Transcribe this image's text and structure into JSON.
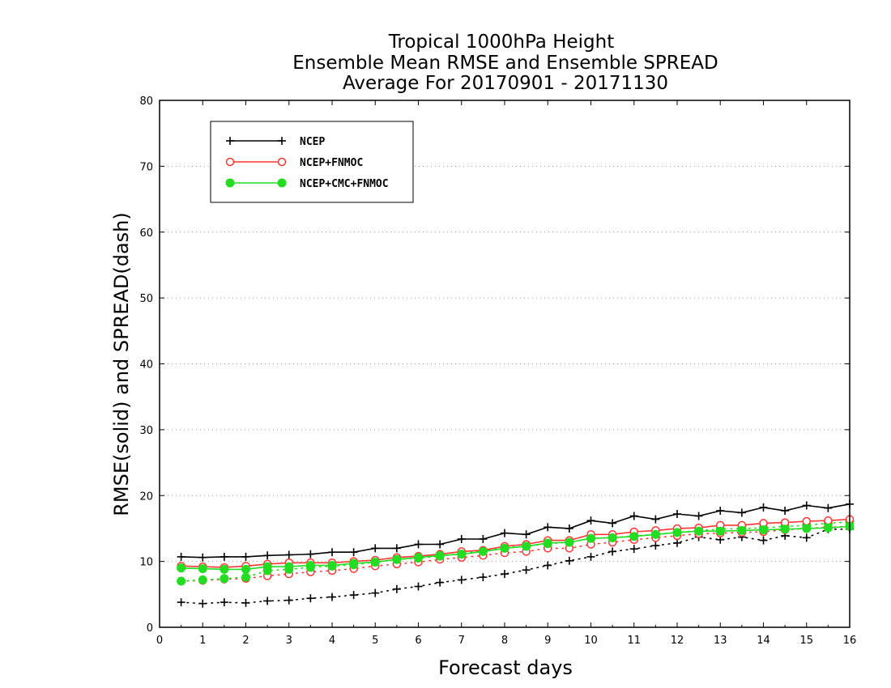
{
  "chart_data": {
    "type": "line",
    "title_lines": [
      "Tropical 1000hPa Height",
      "Ensemble Mean RMSE and Ensemble SPREAD",
      "Average For 20170901 - 20171130"
    ],
    "xlabel": "Forecast days",
    "ylabel": "RMSE(solid) and SPREAD(dash)",
    "xlim": [
      0,
      16
    ],
    "ylim": [
      0,
      80
    ],
    "xticks": [
      "0",
      "1",
      "2",
      "3",
      "4",
      "5",
      "6",
      "7",
      "8",
      "9",
      "10",
      "11",
      "12",
      "13",
      "14",
      "15",
      "16"
    ],
    "yticks": [
      "0",
      "10",
      "20",
      "30",
      "40",
      "50",
      "60",
      "70",
      "80"
    ],
    "grid": "horizontal dotted",
    "legend_position": "top-left",
    "x": [
      0.5,
      1,
      1.5,
      2,
      2.5,
      3,
      3.5,
      4,
      4.5,
      5,
      5.5,
      6,
      6.5,
      7,
      7.5,
      8,
      8.5,
      9,
      9.5,
      10,
      10.5,
      11,
      11.5,
      12,
      12.5,
      13,
      13.5,
      14,
      14.5,
      15,
      15.5,
      16
    ],
    "series": [
      {
        "name": "NCEP",
        "color": "#000000",
        "marker": "plus",
        "rmse": [
          10.7,
          10.6,
          10.7,
          10.7,
          10.9,
          11.0,
          11.1,
          11.4,
          11.4,
          12.0,
          12.0,
          12.6,
          12.6,
          13.4,
          13.4,
          14.3,
          14.1,
          15.2,
          15.0,
          16.2,
          15.8,
          16.9,
          16.4,
          17.2,
          16.9,
          17.7,
          17.4,
          18.2,
          17.7,
          18.5,
          18.1,
          18.7
        ],
        "spread": [
          3.8,
          3.6,
          3.8,
          3.7,
          4.0,
          4.1,
          4.4,
          4.6,
          4.9,
          5.2,
          5.8,
          6.2,
          6.8,
          7.2,
          7.6,
          8.1,
          8.7,
          9.4,
          10.1,
          10.7,
          11.5,
          11.9,
          12.4,
          12.8,
          13.7,
          13.3,
          13.7,
          13.2,
          13.9,
          13.6,
          14.9,
          14.9
        ]
      },
      {
        "name": "NCEP+FNMOC",
        "color": "#ff3333",
        "marker": "open-circle",
        "rmse": [
          9.3,
          9.2,
          9.1,
          9.3,
          9.6,
          9.8,
          9.8,
          9.8,
          10.0,
          10.2,
          10.6,
          10.8,
          11.1,
          11.5,
          11.7,
          12.3,
          12.6,
          13.2,
          13.2,
          14.1,
          14.1,
          14.5,
          14.7,
          15.0,
          15.1,
          15.5,
          15.5,
          15.8,
          15.9,
          16.1,
          16.2,
          16.4
        ],
        "spread": [
          7.0,
          7.1,
          7.3,
          7.4,
          7.8,
          8.1,
          8.4,
          8.6,
          8.9,
          9.3,
          9.6,
          9.9,
          10.3,
          10.6,
          10.9,
          11.3,
          11.5,
          12.0,
          12.0,
          12.6,
          12.9,
          13.3,
          13.6,
          13.9,
          14.2,
          14.3,
          14.4,
          14.5,
          14.8,
          15.0,
          15.2,
          15.3
        ]
      },
      {
        "name": "NCEP+CMC+FNMOC",
        "color": "#22dd22",
        "marker": "filled-circle",
        "rmse": [
          9.0,
          8.9,
          8.8,
          8.8,
          9.2,
          9.2,
          9.4,
          9.4,
          9.7,
          9.9,
          10.3,
          10.6,
          10.9,
          11.1,
          11.5,
          12.0,
          12.3,
          12.8,
          12.9,
          13.5,
          13.6,
          13.8,
          14.1,
          14.4,
          14.6,
          14.6,
          14.7,
          14.8,
          14.9,
          15.0,
          15.1,
          15.3
        ],
        "spread": [
          7.0,
          7.2,
          7.4,
          7.6,
          8.6,
          8.8,
          9.1,
          9.3,
          9.5,
          9.9,
          10.3,
          10.5,
          10.8,
          11.2,
          11.6,
          12.1,
          12.3,
          12.7,
          12.9,
          13.5,
          13.6,
          13.9,
          14.1,
          14.4,
          14.7,
          14.9,
          15.0,
          15.1,
          15.3,
          15.5,
          15.8,
          16.0
        ]
      }
    ]
  }
}
